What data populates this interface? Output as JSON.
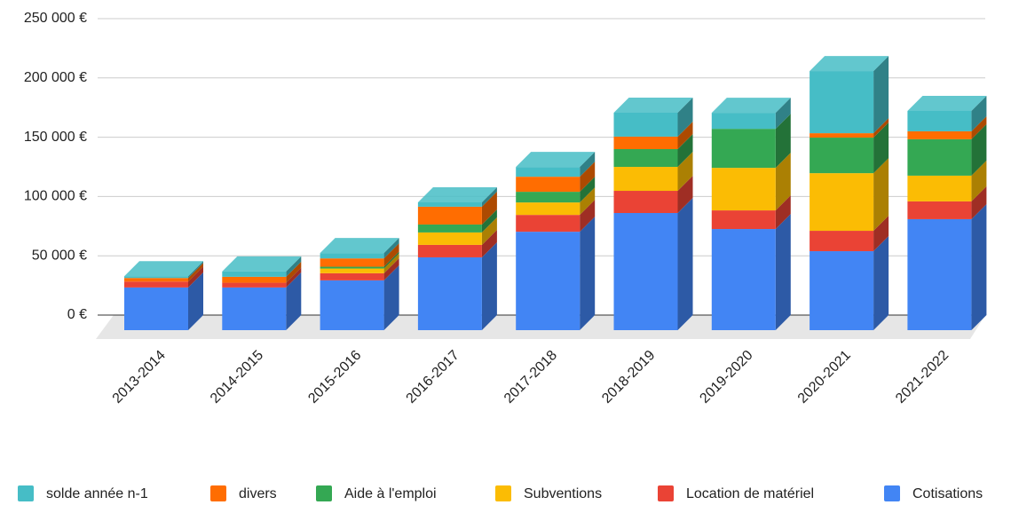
{
  "chart_data": {
    "type": "bar3d_stacked",
    "categories": [
      "2013-2014",
      "2014-2015",
      "2015-2016",
      "2016-2017",
      "2017-2018",
      "2018-2019",
      "2019-2020",
      "2020-2021",
      "2021-2022"
    ],
    "series": [
      {
        "name": "solde année n-1",
        "color": "#46bdc6",
        "values": [
          1500,
          4500,
          4500,
          3700,
          8200,
          20200,
          13500,
          52400,
          17200
        ]
      },
      {
        "name": "divers",
        "color": "#ff6d01",
        "values": [
          3000,
          5000,
          7000,
          15000,
          12700,
          10500,
          0,
          3700,
          6700
        ]
      },
      {
        "name": "Aide à l'emploi",
        "color": "#34a853",
        "values": [
          0,
          0,
          1500,
          6700,
          9000,
          15000,
          32900,
          30000,
          30700
        ]
      },
      {
        "name": "Subventions",
        "color": "#fbbc04",
        "values": [
          0,
          0,
          4000,
          10500,
          10500,
          20200,
          35900,
          48600,
          21700
        ]
      },
      {
        "name": "Location de matériel",
        "color": "#ea4335",
        "values": [
          5000,
          4000,
          6000,
          10500,
          14200,
          18700,
          15700,
          17200,
          15000
        ]
      },
      {
        "name": "Cotisations",
        "color": "#4285f4",
        "values": [
          36000,
          36000,
          42000,
          61400,
          83000,
          98800,
          85300,
          66600,
          93600
        ]
      }
    ],
    "ylim": [
      0,
      250000
    ],
    "yticks": [
      {
        "value": 0,
        "label": "0 €"
      },
      {
        "value": 50000,
        "label": "50 000 €"
      },
      {
        "value": 100000,
        "label": "100 000 €"
      },
      {
        "value": 150000,
        "label": "150 000 €"
      },
      {
        "value": 200000,
        "label": "200 000 €"
      },
      {
        "value": 250000,
        "label": "250 000 €"
      }
    ],
    "grid": true,
    "legend": "bottom"
  }
}
